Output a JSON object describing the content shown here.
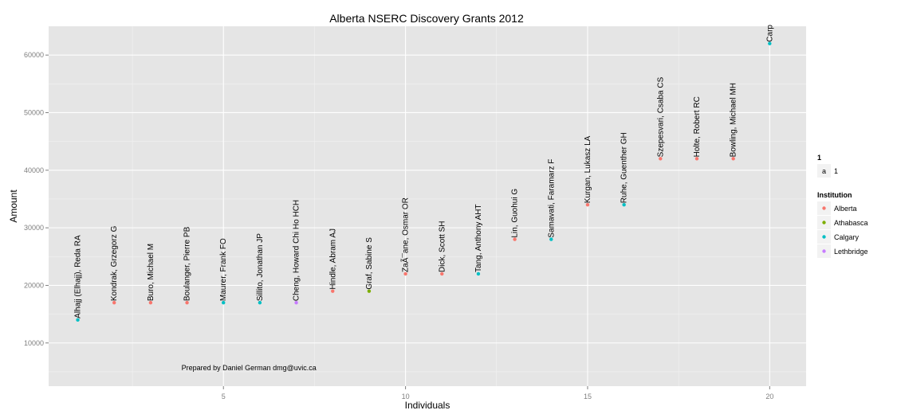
{
  "chart_data": {
    "type": "scatter",
    "title": "Alberta NSERC Discovery Grants 2012",
    "xlabel": "Individuals",
    "ylabel": "Amount",
    "xlim": [
      0.2,
      21
    ],
    "ylim": [
      2500,
      65000
    ],
    "x_ticks": [
      5,
      10,
      15,
      20
    ],
    "y_ticks": [
      10000,
      20000,
      30000,
      40000,
      50000,
      60000
    ],
    "grid": true,
    "legend_position": "right",
    "annotation": "Prepared by Daniel German dmg@uvic.ca",
    "annotation_x": 5.7,
    "annotation_y": 5300,
    "size_legend": {
      "title": "1",
      "key_symbol": "a",
      "label": "1"
    },
    "color_legend": {
      "title": "Institution",
      "items": [
        {
          "name": "Alberta",
          "color": "#F8766D"
        },
        {
          "name": "Athabasca",
          "color": "#7CAE00"
        },
        {
          "name": "Calgary",
          "color": "#00BFC4"
        },
        {
          "name": "Lethbridge",
          "color": "#C77CFF"
        }
      ]
    },
    "points": [
      {
        "x": 1,
        "y": 14000,
        "label": "Alhajj (Elhajj), Reda RA",
        "institution": "Calgary"
      },
      {
        "x": 2,
        "y": 17000,
        "label": "Kondrak, Grzegorz G",
        "institution": "Alberta"
      },
      {
        "x": 3,
        "y": 17000,
        "label": "Buro, Michael M",
        "institution": "Alberta"
      },
      {
        "x": 4,
        "y": 17000,
        "label": "Boulanger, Pierre PB",
        "institution": "Alberta"
      },
      {
        "x": 5,
        "y": 17000,
        "label": "Maurer, Frank FO",
        "institution": "Calgary"
      },
      {
        "x": 6,
        "y": 17000,
        "label": "Sillito, Jonathan JP",
        "institution": "Calgary"
      },
      {
        "x": 7,
        "y": 17000,
        "label": "Cheng, Howard Chi Ho HCH",
        "institution": "Lethbridge"
      },
      {
        "x": 8,
        "y": 19000,
        "label": "Hindle, Abram AJ",
        "institution": "Alberta"
      },
      {
        "x": 9,
        "y": 19000,
        "label": "Graf, Sabine S",
        "institution": "Athabasca"
      },
      {
        "x": 10,
        "y": 22000,
        "label": "ZaÃ¯ane, Osmar OR",
        "institution": "Alberta"
      },
      {
        "x": 11,
        "y": 22000,
        "label": "Dick, Scott SH",
        "institution": "Alberta"
      },
      {
        "x": 12,
        "y": 22000,
        "label": "Tang, Anthony AHT",
        "institution": "Calgary"
      },
      {
        "x": 13,
        "y": 28000,
        "label": "Lin, Guohui G",
        "institution": "Alberta"
      },
      {
        "x": 14,
        "y": 28000,
        "label": "Samavati, Faramarz F",
        "institution": "Calgary"
      },
      {
        "x": 15,
        "y": 34000,
        "label": "Kurgan, Lukasz LA",
        "institution": "Alberta"
      },
      {
        "x": 16,
        "y": 34000,
        "label": "Ruhe, Guenther GH",
        "institution": "Calgary"
      },
      {
        "x": 17,
        "y": 42000,
        "label": "Szepesvari, Csaba CS",
        "institution": "Alberta"
      },
      {
        "x": 18,
        "y": 42000,
        "label": "Holte, Robert RC",
        "institution": "Alberta"
      },
      {
        "x": 19,
        "y": 42000,
        "label": "Bowling, Michael MH",
        "institution": "Alberta"
      },
      {
        "x": 20,
        "y": 62000,
        "label": "Carp",
        "institution": "Calgary"
      }
    ]
  }
}
